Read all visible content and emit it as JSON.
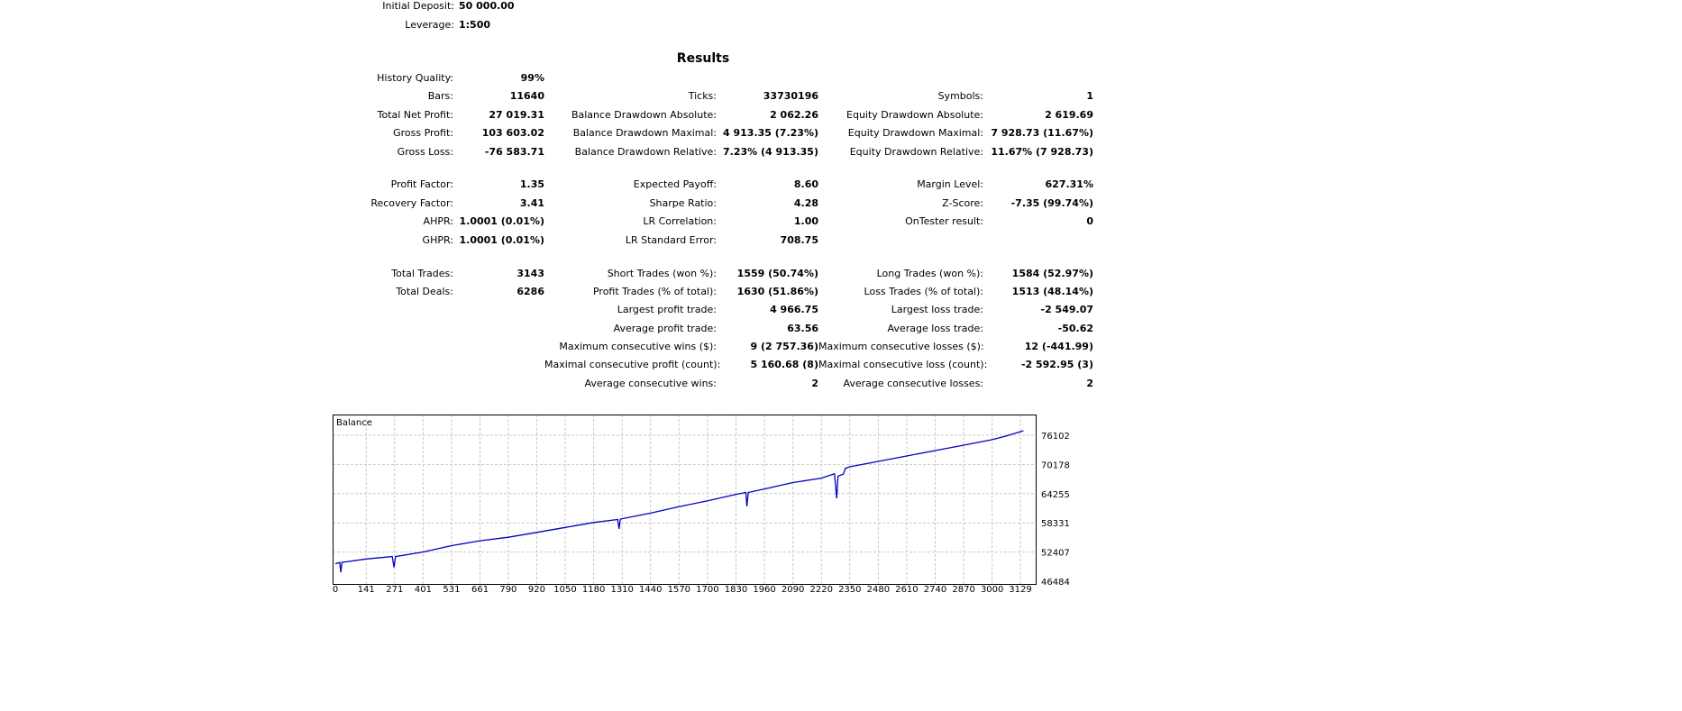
{
  "header": {
    "initial_deposit_label": "Initial Deposit:",
    "initial_deposit_value": "50 000.00",
    "leverage_label": "Leverage:",
    "leverage_value": "1:500"
  },
  "results": {
    "title": "Results",
    "rows": [
      [
        [
          "History Quality:",
          "99%"
        ]
      ],
      [
        [
          "Bars:",
          "11640"
        ],
        [
          "Ticks:",
          "33730196"
        ],
        [
          "Symbols:",
          "1"
        ]
      ],
      [
        [
          "Total Net Profit:",
          "27 019.31"
        ],
        [
          "Balance Drawdown Absolute:",
          "2 062.26"
        ],
        [
          "Equity Drawdown Absolute:",
          "2 619.69"
        ]
      ],
      [
        [
          "Gross Profit:",
          "103 603.02"
        ],
        [
          "Balance Drawdown Maximal:",
          "4 913.35 (7.23%)"
        ],
        [
          "Equity Drawdown Maximal:",
          "7 928.73 (11.67%)"
        ]
      ],
      [
        [
          "Gross Loss:",
          "-76 583.71"
        ],
        [
          "Balance Drawdown Relative:",
          "7.23% (4 913.35)"
        ],
        [
          "Equity Drawdown Relative:",
          "11.67% (7 928.73)"
        ]
      ],
      [],
      [
        [
          "Profit Factor:",
          "1.35"
        ],
        [
          "Expected Payoff:",
          "8.60"
        ],
        [
          "Margin Level:",
          "627.31%"
        ]
      ],
      [
        [
          "Recovery Factor:",
          "3.41"
        ],
        [
          "Sharpe Ratio:",
          "4.28"
        ],
        [
          "Z-Score:",
          "-7.35 (99.74%)"
        ]
      ],
      [
        [
          "AHPR:",
          "1.0001 (0.01%)"
        ],
        [
          "LR Correlation:",
          "1.00"
        ],
        [
          "OnTester result:",
          "0"
        ]
      ],
      [
        [
          "GHPR:",
          "1.0001 (0.01%)"
        ],
        [
          "LR Standard Error:",
          "708.75"
        ]
      ],
      [],
      [
        [
          "Total Trades:",
          "3143"
        ],
        [
          "Short Trades (won %):",
          "1559 (50.74%)"
        ],
        [
          "Long Trades (won %):",
          "1584 (52.97%)"
        ]
      ],
      [
        [
          "Total Deals:",
          "6286"
        ],
        [
          "Profit Trades (% of total):",
          "1630 (51.86%)"
        ],
        [
          "Loss Trades (% of total):",
          "1513 (48.14%)"
        ]
      ],
      [
        [
          "",
          ""
        ],
        [
          "Largest profit trade:",
          "4 966.75"
        ],
        [
          "Largest loss trade:",
          "-2 549.07"
        ]
      ],
      [
        [
          "",
          ""
        ],
        [
          "Average profit trade:",
          "63.56"
        ],
        [
          "Average loss trade:",
          "-50.62"
        ]
      ],
      [
        [
          "",
          ""
        ],
        [
          "Maximum consecutive wins ($):",
          "9 (2 757.36)"
        ],
        [
          "Maximum consecutive losses ($):",
          "12 (-441.99)"
        ]
      ],
      [
        [
          "",
          ""
        ],
        [
          "Maximal consecutive profit (count):",
          "5 160.68 (8)"
        ],
        [
          "Maximal consecutive loss (count):",
          "-2 592.95 (3)"
        ]
      ],
      [
        [
          "",
          ""
        ],
        [
          "Average consecutive wins:",
          "2"
        ],
        [
          "Average consecutive losses:",
          "2"
        ]
      ]
    ]
  },
  "chart_data": {
    "type": "line",
    "title": "Balance",
    "xlabel": "",
    "ylabel": "",
    "xlim": [
      0,
      3143
    ],
    "ylim": [
      46484,
      76102
    ],
    "x_ticks": [
      0,
      141,
      271,
      401,
      531,
      661,
      790,
      920,
      1050,
      1180,
      1310,
      1440,
      1570,
      1700,
      1830,
      1960,
      2090,
      2220,
      2350,
      2480,
      2610,
      2740,
      2870,
      3000,
      3129
    ],
    "y_ticks": [
      46484,
      52407,
      58331,
      64255,
      70178,
      76102
    ],
    "grid": true,
    "series": [
      {
        "name": "Balance",
        "color": "#0000c0",
        "points": [
          [
            0,
            50000
          ],
          [
            20,
            50300
          ],
          [
            25,
            48300
          ],
          [
            30,
            50300
          ],
          [
            141,
            51000
          ],
          [
            260,
            51500
          ],
          [
            268,
            49300
          ],
          [
            275,
            51500
          ],
          [
            400,
            52400
          ],
          [
            531,
            53700
          ],
          [
            660,
            54700
          ],
          [
            790,
            55400
          ],
          [
            920,
            56400
          ],
          [
            1050,
            57400
          ],
          [
            1180,
            58400
          ],
          [
            1290,
            59000
          ],
          [
            1296,
            57100
          ],
          [
            1302,
            59100
          ],
          [
            1440,
            60300
          ],
          [
            1570,
            61600
          ],
          [
            1700,
            62800
          ],
          [
            1830,
            64100
          ],
          [
            1875,
            64500
          ],
          [
            1880,
            61700
          ],
          [
            1886,
            64500
          ],
          [
            1960,
            65200
          ],
          [
            2090,
            66500
          ],
          [
            2220,
            67400
          ],
          [
            2280,
            68300
          ],
          [
            2290,
            63300
          ],
          [
            2296,
            67800
          ],
          [
            2320,
            68200
          ],
          [
            2330,
            69400
          ],
          [
            2350,
            69700
          ],
          [
            2480,
            70800
          ],
          [
            2610,
            71900
          ],
          [
            2740,
            73000
          ],
          [
            2870,
            74100
          ],
          [
            3000,
            75200
          ],
          [
            3060,
            75900
          ],
          [
            3143,
            77019
          ]
        ]
      }
    ]
  }
}
